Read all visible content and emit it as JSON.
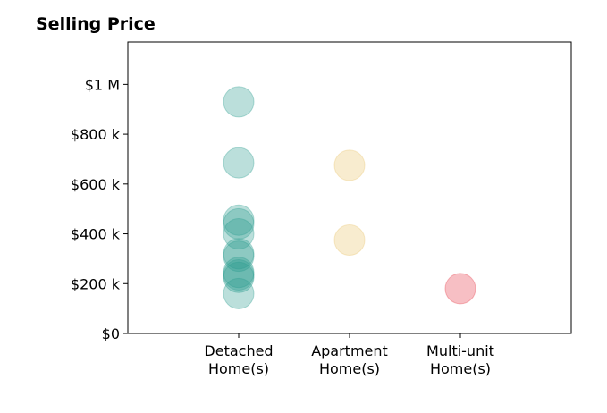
{
  "chart_data": {
    "type": "scatter",
    "title": "Selling Price",
    "xlabel": "",
    "ylabel": "",
    "categories": [
      "Detached\nHome(s)",
      "Apartment\nHome(s)",
      "Multi-unit\nHome(s)"
    ],
    "y_tick_labels": [
      "$0",
      "$200 k",
      "$400 k",
      "$600 k",
      "$800 k",
      "$1 M"
    ],
    "y_ticks": [
      0,
      200000,
      400000,
      600000,
      800000,
      1000000
    ],
    "ylim": [
      0,
      1170000
    ],
    "xlim": [
      -1,
      3
    ],
    "grid": false,
    "series": [
      {
        "category_index": 0,
        "color": "#2a9d8f",
        "values": [
          930000,
          685000,
          455000,
          440000,
          400000,
          320000,
          310000,
          245000,
          235000,
          225000,
          160000
        ]
      },
      {
        "category_index": 1,
        "color": "#e9c46a",
        "values": [
          675000,
          375000
        ]
      },
      {
        "category_index": 2,
        "color": "#e63946",
        "values": [
          180000
        ]
      }
    ]
  }
}
